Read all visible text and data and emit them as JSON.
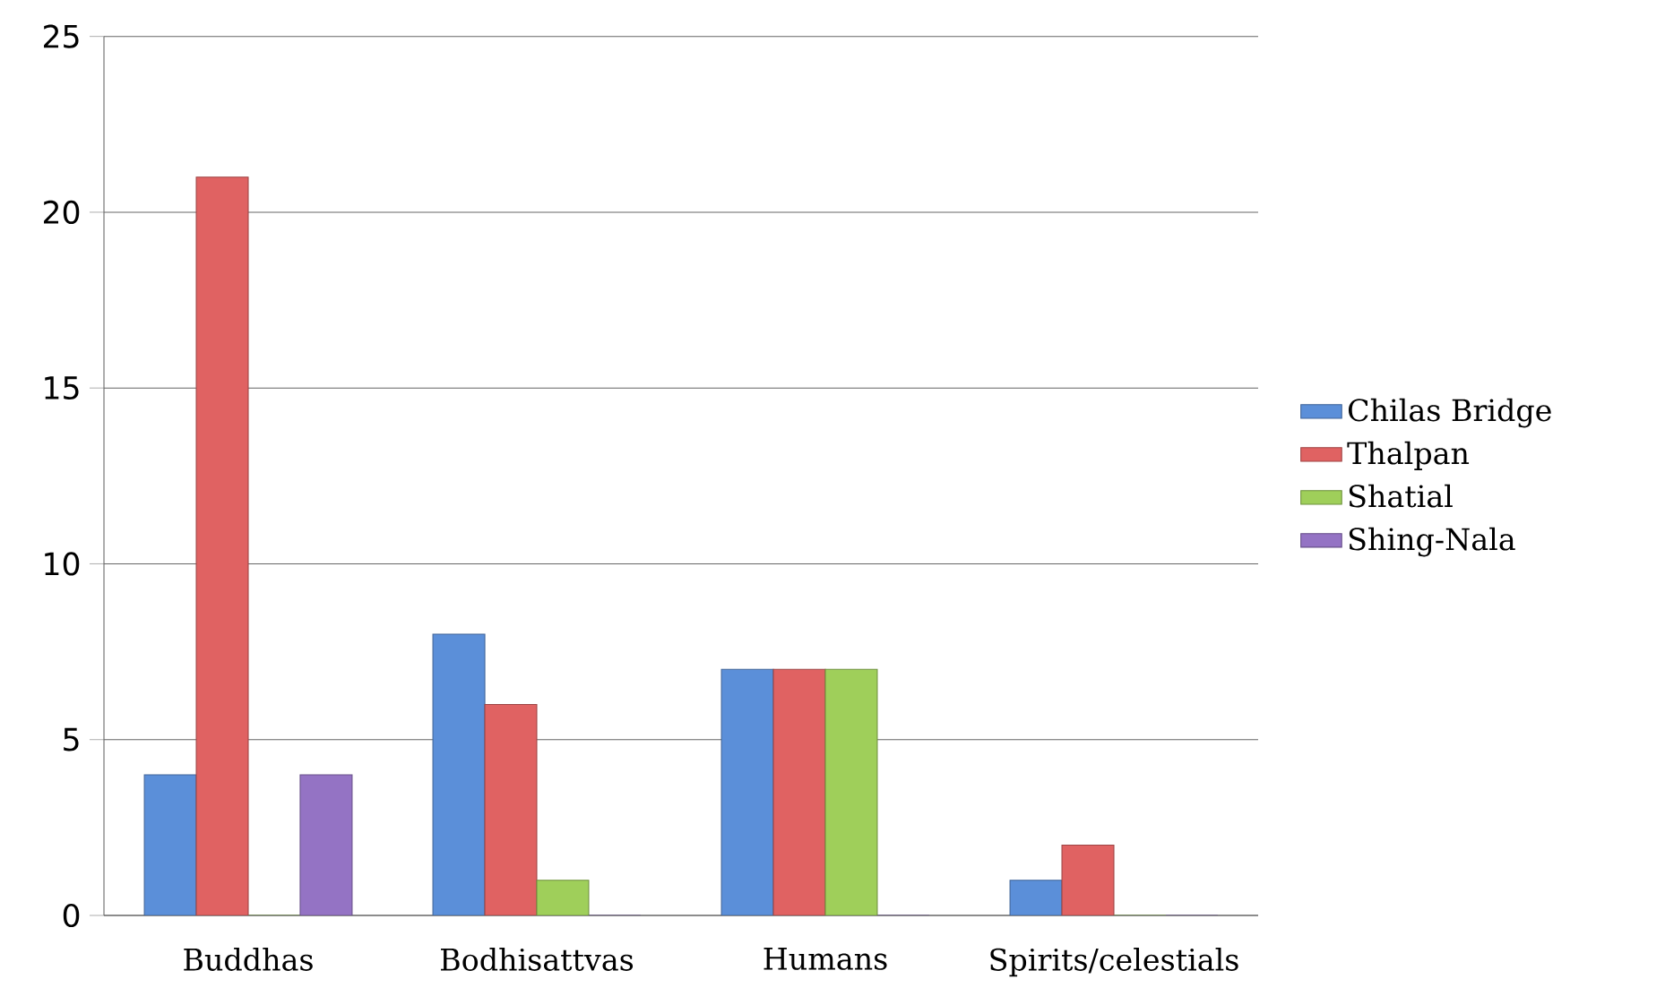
{
  "chart_data": {
    "type": "bar",
    "categories": [
      "Buddhas",
      "Bodhisattvas",
      "Humans",
      "Spirits/celestials"
    ],
    "series": [
      {
        "name": "Chilas Bridge",
        "color": "#5b8fd9",
        "values": [
          4,
          8,
          7,
          1
        ]
      },
      {
        "name": "Thalpan",
        "color": "#e06262",
        "values": [
          21,
          6,
          7,
          2
        ]
      },
      {
        "name": "Shatial",
        "color": "#9fcf5a",
        "values": [
          0,
          1,
          7,
          0
        ]
      },
      {
        "name": "Shing-Nala",
        "color": "#9473c4",
        "values": [
          4,
          0,
          0,
          0
        ]
      }
    ],
    "ylim": [
      0,
      25
    ],
    "yticks": [
      0,
      5,
      10,
      15,
      20,
      25
    ],
    "grid": "y",
    "legend": "right"
  }
}
